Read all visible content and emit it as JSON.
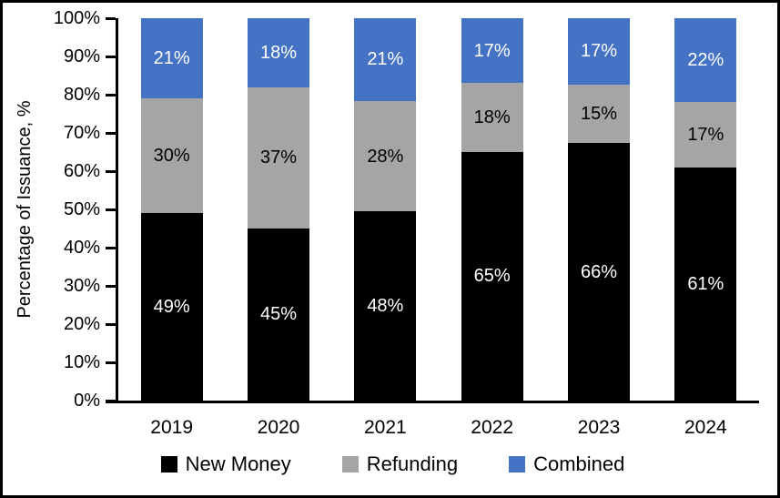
{
  "chart_data": {
    "type": "bar",
    "subtype": "stacked-100-percent",
    "title": "",
    "xlabel": "",
    "ylabel": "Percentage of Issuance, %",
    "ylim": [
      0,
      100
    ],
    "ytick_step": 10,
    "ytick_labels": [
      "0%",
      "10%",
      "20%",
      "30%",
      "40%",
      "50%",
      "60%",
      "70%",
      "80%",
      "90%",
      "100%"
    ],
    "categories": [
      "2019",
      "2020",
      "2021",
      "2022",
      "2023",
      "2024"
    ],
    "series": [
      {
        "name": "New Money",
        "color": "#000000",
        "label_color": "#ffffff",
        "values": [
          49,
          45,
          48,
          65,
          66,
          61
        ]
      },
      {
        "name": "Refunding",
        "color": "#A5A5A5",
        "label_color": "#000000",
        "values": [
          30,
          37,
          28,
          18,
          15,
          17
        ]
      },
      {
        "name": "Combined",
        "color": "#4472C4",
        "label_color": "#ffffff",
        "values": [
          21,
          18,
          21,
          17,
          17,
          22
        ]
      }
    ],
    "data_label_suffix": "%",
    "legend_position": "bottom",
    "grid": false
  },
  "colors": {
    "axis": "#000000",
    "frame_border": "#000000",
    "background": "#ffffff"
  }
}
